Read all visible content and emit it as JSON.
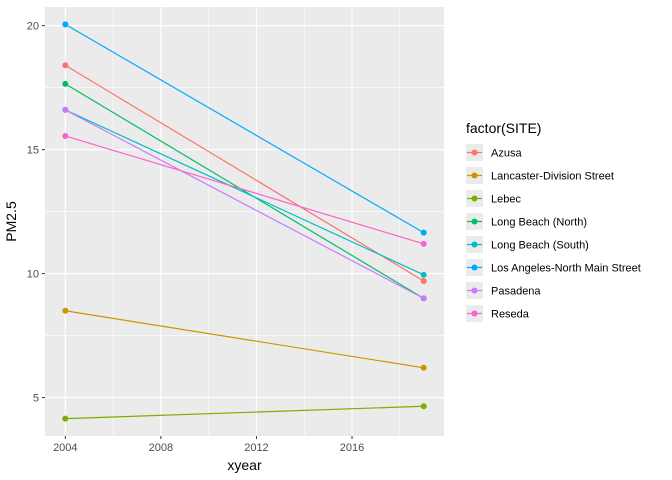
{
  "chart_data": {
    "type": "line",
    "xlabel": "xyear",
    "ylabel": "PM2.5",
    "x_ticks": [
      2004,
      2008,
      2012,
      2016
    ],
    "y_ticks": [
      5,
      10,
      15,
      20
    ],
    "xlim": [
      2003.15,
      2019.85
    ],
    "ylim": [
      3.45,
      20.75
    ],
    "grid": true,
    "legend": {
      "title": "factor(SITE)",
      "placement": "right"
    },
    "series": [
      {
        "name": "Azusa",
        "color": "#F8766D",
        "x": [
          2004,
          2019
        ],
        "y": [
          18.4,
          9.7
        ]
      },
      {
        "name": "Lancaster-Division Street",
        "color": "#CD9600",
        "x": [
          2004,
          2019
        ],
        "y": [
          8.5,
          6.2
        ]
      },
      {
        "name": "Lebec",
        "color": "#7CAE00",
        "x": [
          2004,
          2019
        ],
        "y": [
          4.15,
          4.65
        ]
      },
      {
        "name": "Long Beach (North)",
        "color": "#00BE67",
        "x": [
          2004,
          2019
        ],
        "y": [
          17.65,
          9.0
        ]
      },
      {
        "name": "Long Beach (South)",
        "color": "#00BFC4",
        "x": [
          2004,
          2019
        ],
        "y": [
          16.6,
          9.95
        ]
      },
      {
        "name": "Los Angeles-North Main Street",
        "color": "#00A9FF",
        "x": [
          2004,
          2019
        ],
        "y": [
          20.05,
          11.65
        ]
      },
      {
        "name": "Pasadena",
        "color": "#C77CFF",
        "x": [
          2004,
          2019
        ],
        "y": [
          16.6,
          9.0
        ]
      },
      {
        "name": "Reseda",
        "color": "#FF61CC",
        "x": [
          2004,
          2019
        ],
        "y": [
          15.55,
          11.2
        ]
      }
    ]
  }
}
